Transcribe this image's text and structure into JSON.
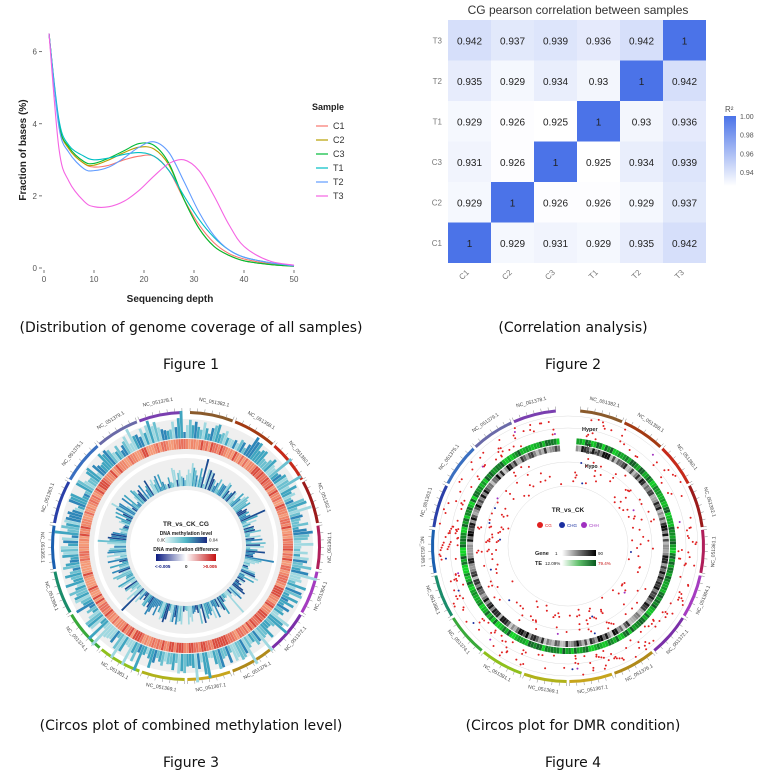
{
  "figures": [
    {
      "caption": "(Distribution of genome coverage of all samples)",
      "label": "Figure 1"
    },
    {
      "caption": "(Correlation analysis)",
      "label": "Figure 2"
    },
    {
      "caption": "(Circos plot of combined methylation level)",
      "label": "Figure 3"
    },
    {
      "caption": "(Circos plot for DMR condition)",
      "label": "Figure 4"
    }
  ],
  "chart_data": [
    {
      "type": "line",
      "xlabel": "Sequencing depth",
      "ylabel": "Fraction of bases (%)",
      "xlim": [
        0,
        50
      ],
      "ylim": [
        0,
        6.6
      ],
      "xticks": [
        0,
        10,
        20,
        30,
        40,
        50
      ],
      "yticks": [
        0,
        2,
        4,
        6
      ],
      "legend_title": "Sample",
      "legend_position": "right",
      "grid": false,
      "x": [
        1,
        3,
        5,
        8,
        10,
        13,
        16,
        19,
        22,
        25,
        28,
        31,
        34,
        37,
        40,
        45,
        50
      ],
      "series": [
        {
          "name": "C1",
          "color": "#f8766d",
          "values": [
            6.5,
            4.0,
            3.3,
            2.9,
            2.8,
            2.85,
            3.0,
            3.1,
            3.1,
            2.7,
            1.9,
            1.2,
            0.7,
            0.4,
            0.25,
            0.12,
            0.05
          ]
        },
        {
          "name": "C2",
          "color": "#b79f00",
          "values": [
            6.5,
            4.0,
            3.3,
            2.9,
            2.85,
            3.0,
            3.2,
            3.35,
            3.3,
            2.85,
            1.9,
            1.1,
            0.6,
            0.35,
            0.2,
            0.1,
            0.05
          ]
        },
        {
          "name": "C3",
          "color": "#00ba38",
          "values": [
            6.5,
            4.0,
            3.35,
            2.95,
            2.9,
            3.05,
            3.25,
            3.45,
            3.4,
            2.9,
            1.9,
            1.1,
            0.6,
            0.35,
            0.2,
            0.1,
            0.05
          ]
        },
        {
          "name": "T1",
          "color": "#00bfc4",
          "values": [
            6.5,
            4.1,
            3.4,
            3.1,
            3.0,
            3.05,
            3.15,
            3.2,
            3.1,
            2.7,
            2.0,
            1.35,
            0.85,
            0.5,
            0.3,
            0.15,
            0.06
          ]
        },
        {
          "name": "T2",
          "color": "#619cff",
          "values": [
            6.5,
            3.9,
            3.2,
            2.75,
            2.7,
            2.8,
            3.05,
            3.35,
            3.5,
            3.2,
            2.4,
            1.55,
            0.9,
            0.5,
            0.3,
            0.15,
            0.06
          ]
        },
        {
          "name": "T3",
          "color": "#f564e3",
          "values": [
            6.5,
            3.3,
            2.4,
            1.85,
            1.7,
            1.7,
            1.85,
            2.15,
            2.55,
            2.9,
            3.0,
            2.7,
            2.0,
            1.2,
            0.6,
            0.2,
            0.08
          ]
        }
      ]
    },
    {
      "type": "heatmap",
      "title": "CG pearson correlation between samples",
      "rows_top_to_bottom": [
        "T3",
        "T2",
        "T1",
        "C3",
        "C2",
        "C1"
      ],
      "columns": [
        "C1",
        "C2",
        "C3",
        "T1",
        "T2",
        "T3"
      ],
      "values": [
        [
          "0.942",
          "0.937",
          "0.939",
          "0.936",
          "0.942",
          "1"
        ],
        [
          "0.935",
          "0.929",
          "0.934",
          "0.93",
          "1",
          "0.942"
        ],
        [
          "0.929",
          "0.926",
          "0.925",
          "1",
          "0.93",
          "0.936"
        ],
        [
          "0.931",
          "0.926",
          "1",
          "0.925",
          "0.934",
          "0.939"
        ],
        [
          "0.929",
          "1",
          "0.926",
          "0.926",
          "0.929",
          "0.937"
        ],
        [
          "1",
          "0.929",
          "0.931",
          "0.929",
          "0.935",
          "0.942"
        ]
      ],
      "legend_title": "R²",
      "legend_ticks": [
        "1.00",
        "0.98",
        "0.96",
        "0.94"
      ],
      "legend_range": [
        0.925,
        1.0
      ],
      "color_low": "#ffffff",
      "color_high": "#4b73e8"
    }
  ],
  "circos1": {
    "center_title": "TR_vs_CK_CG",
    "level_label": "DNA methylation level",
    "level_min": "0.00",
    "level_max": "0.04",
    "diff_label": "DNA methylation difference",
    "diff_min": "<-0.005",
    "diff_mid": "0",
    "diff_max": ">0.005",
    "chromosomes": [
      "NC_051382.1",
      "NC_051358.1",
      "NC_051360.1",
      "NC_051362.1",
      "NC_051361.1",
      "NC_051364.1",
      "NC_051372.1",
      "NC_051376.1",
      "NC_051367.1",
      "NC_051369.1",
      "NC_051381.1",
      "NC_051374.1",
      "NC_051368.1",
      "NC_051365.1",
      "NC_051363.1",
      "NC_051375.1",
      "NC_051379.1",
      "NC_051378.1"
    ],
    "colors": [
      "#8a5a2b",
      "#a33a12",
      "#c62a1a",
      "#9b1a1a",
      "#b01e5a",
      "#a53cc0",
      "#7a2fa8",
      "#b08a1a",
      "#c7a51c",
      "#b0b21a",
      "#8fc01c",
      "#39a93a",
      "#1a8c6a",
      "#1a5fb0",
      "#2a3fa8",
      "#3a6fc0",
      "#6a6aa8",
      "#7a3fb0"
    ]
  },
  "circos2": {
    "center_title": "TR_vs_CK",
    "ring_hyper": "Hyper",
    "ring_te": "TE",
    "ring_gene": "Gene",
    "ring_hypo": "Hypo",
    "legend": [
      {
        "label": "CG",
        "color": "#e02020"
      },
      {
        "label": "CHG",
        "color": "#1a2fa0"
      },
      {
        "label": "CHH",
        "color": "#a030c0"
      }
    ],
    "gene_label": "Gene",
    "gene_min": "1",
    "gene_max": "90",
    "te_label": "TE",
    "te_min": "12.09%",
    "te_max": "79.4%",
    "chromosomes": [
      "NC_051382.1",
      "NC_051358.1",
      "NC_051360.1",
      "NC_051362.1",
      "NC_051361.1",
      "NC_051364.1",
      "NC_051372.1",
      "NC_051376.1",
      "NC_051367.1",
      "NC_051369.1",
      "NC_051381.1",
      "NC_051374.1",
      "NC_051368.1",
      "NC_051365.1",
      "NC_051363.1",
      "NC_051375.1",
      "NC_051379.1",
      "NC_051378.1"
    ],
    "colors": [
      "#8a5a2b",
      "#a33a12",
      "#c62a1a",
      "#9b1a1a",
      "#b01e5a",
      "#a53cc0",
      "#7a2fa8",
      "#b08a1a",
      "#c7a51c",
      "#b0b21a",
      "#8fc01c",
      "#39a93a",
      "#1a8c6a",
      "#1a5fb0",
      "#2a3fa8",
      "#3a6fc0",
      "#6a6aa8",
      "#7a3fb0"
    ]
  }
}
